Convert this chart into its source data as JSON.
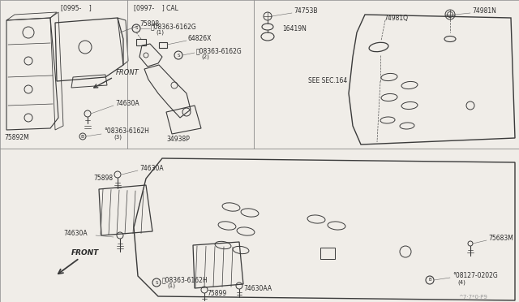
{
  "bg_color": "#f0ede8",
  "line_color": "#3a3a3a",
  "text_color": "#2a2a2a",
  "fig_width": 6.4,
  "fig_height": 3.72,
  "dpi": 100,
  "labels": {
    "bracket1": "[0995-    ]",
    "bracket2": "[0997-    ] CAL",
    "p75898": "75898",
    "p74630A_1": "74630A",
    "p75892M": "75892M",
    "pB08363": "°08363-6162H",
    "pB08363_sub": "(3)",
    "pS08363_1": "Ⓜ08363-6162G",
    "pS08363_1_sub": "(1)",
    "p64826X": "64826X",
    "pS08363_2": "Ⓜ08363-6162G",
    "pS08363_2_sub": "(2)",
    "p34938P": "34938P",
    "p74753B": "74753B",
    "p16419N": "16419N",
    "pSECSEC": "SEE SEC.164",
    "p74981Q": "74981Q",
    "p74981N": "74981N",
    "p74630A_2": "74630A",
    "p75898_2": "75898",
    "p74630A_3": "74630A",
    "pS08363_3": "Ⓜ08363-6162H",
    "pS08363_3_sub": "(1)",
    "p75899": "75899",
    "p74630AA": "74630AA",
    "p75683M": "75683M",
    "pB08127": "°08127-0202G",
    "pB08127_sub": "(4)",
    "front1": "FRONT",
    "front2": "FRONT",
    "watermark": "^7·7*0·P9"
  }
}
